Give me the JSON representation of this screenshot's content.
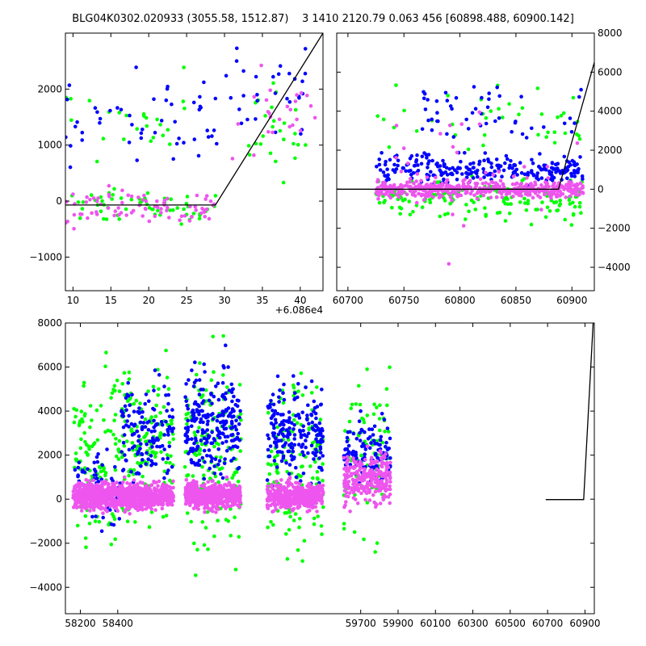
{
  "title": "BLG04K0302.020933 (3055.58, 1512.87)    3 1410 2120.79 0.063 456 [60898.488, 60900.142]",
  "colors": {
    "series_a": "#00ff00",
    "series_b": "#0000ff",
    "series_c": "#ee55ee",
    "model": "#000000"
  },
  "chart_data": [
    {
      "name": "top-left",
      "type": "scatter",
      "xlim": [
        9,
        43
      ],
      "ylim": [
        -1600,
        3000
      ],
      "x_offset_label": "+6.086e4",
      "xticks": [
        10,
        15,
        20,
        25,
        30,
        35,
        40
      ],
      "yticks": [
        -1000,
        0,
        1000,
        2000
      ],
      "model_line": {
        "x": [
          9,
          28.8,
          43
        ],
        "y": [
          -70,
          -70,
          3000
        ]
      },
      "series": [
        {
          "color": "series_a",
          "clusters": [
            [
              9,
              29,
              -500,
              300,
              60
            ],
            [
              9,
              25,
              500,
              2600,
              25
            ],
            [
              33,
              41,
              0,
              2400,
              25
            ]
          ]
        },
        {
          "color": "series_b",
          "clusters": [
            [
              9,
              29,
              300,
              2600,
              50
            ],
            [
              30,
              41,
              1000,
              3000,
              30
            ]
          ]
        },
        {
          "color": "series_c",
          "clusters": [
            [
              9,
              29,
              -600,
              400,
              80
            ],
            [
              31,
              42,
              500,
              2500,
              25
            ]
          ]
        }
      ]
    },
    {
      "name": "top-right",
      "type": "scatter",
      "xlim": [
        60690,
        60920
      ],
      "ylim": [
        -5200,
        8000
      ],
      "xticks": [
        60700,
        60750,
        60800,
        60850,
        60900
      ],
      "yticks": [
        -4000,
        -2000,
        0,
        2000,
        4000,
        6000,
        8000
      ],
      "model_line": {
        "x": [
          60690,
          60888,
          60920
        ],
        "y": [
          0,
          0,
          6500
        ]
      },
      "series": [
        {
          "color": "series_a",
          "clusters": [
            [
              60725,
              60910,
              -2000,
              1000,
              150
            ],
            [
              60725,
              60910,
              1000,
              6000,
              40
            ]
          ]
        },
        {
          "color": "series_b",
          "clusters": [
            [
              60725,
              60910,
              0,
              2000,
              250
            ],
            [
              60760,
              60910,
              2000,
              6000,
              50
            ]
          ]
        },
        {
          "color": "series_c",
          "clusters": [
            [
              60725,
              60910,
              -600,
              600,
              450
            ],
            [
              60740,
              60910,
              -4500,
              6000,
              40
            ]
          ]
        }
      ]
    },
    {
      "name": "bottom",
      "type": "scatter",
      "xlim": [
        58120,
        60950
      ],
      "ylim": [
        -5200,
        8000
      ],
      "xticks": [
        58200,
        58400,
        59700,
        59900,
        60100,
        60300,
        60500,
        60700,
        60900
      ],
      "yticks": [
        -4000,
        -2000,
        0,
        2000,
        4000,
        6000,
        8000
      ],
      "model_line": {
        "x": [
          60690,
          60893,
          60950
        ],
        "y": [
          -20,
          -20,
          9000
        ]
      },
      "series": [
        {
          "color": "series_a",
          "clusters": [
            [
              58160,
              58430,
              -3000,
              7500,
              120
            ],
            [
              58420,
              58700,
              -3000,
              7500,
              140
            ],
            [
              58760,
              59060,
              -4000,
              7500,
              150
            ],
            [
              59200,
              59500,
              -4000,
              7500,
              140
            ],
            [
              59610,
              59860,
              -3000,
              7000,
              90
            ]
          ]
        },
        {
          "color": "series_b",
          "clusters": [
            [
              58160,
              58430,
              -2000,
              3000,
              70
            ],
            [
              58420,
              58700,
              0,
              6000,
              130
            ],
            [
              58760,
              59060,
              0,
              7000,
              230
            ],
            [
              59200,
              59500,
              0,
              6000,
              200
            ],
            [
              59610,
              59860,
              0,
              4000,
              130
            ]
          ]
        },
        {
          "color": "series_c",
          "clusters": [
            [
              58160,
              58430,
              -700,
              1000,
              450
            ],
            [
              58420,
              58700,
              -700,
              1000,
              450
            ],
            [
              58760,
              59060,
              -700,
              1000,
              450
            ],
            [
              59200,
              59500,
              -700,
              1000,
              450
            ],
            [
              59610,
              59860,
              -700,
              2500,
              260
            ]
          ]
        }
      ]
    }
  ]
}
